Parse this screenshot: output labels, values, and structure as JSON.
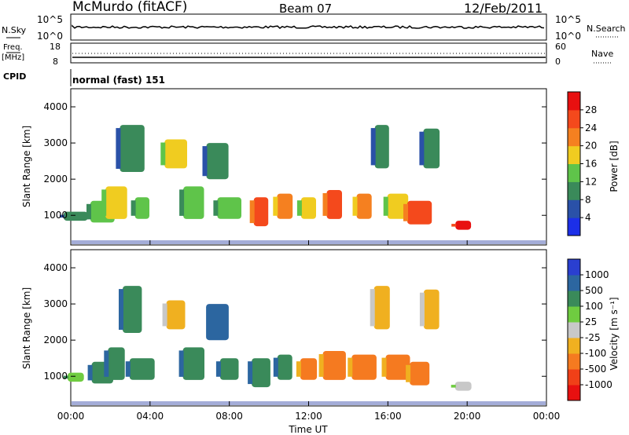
{
  "header": {
    "station": "McMurdo (fitACF)",
    "beam": "Beam 07",
    "date": "12/Feb/2011"
  },
  "top_panels": {
    "nsky_label": "N.Sky",
    "nsky_ticks": [
      "10^5",
      "10^0"
    ],
    "nsearch_label": "N.Search",
    "freq_label_1": "Freq.",
    "freq_label_2": "[MHz]",
    "freq_ticks": [
      "18",
      "8"
    ],
    "nave_ticks": [
      "60",
      "0"
    ],
    "nave_label": "Nave",
    "cpid_label": "CPID",
    "cpid_value": "normal (fast) 151"
  },
  "chart_data": [
    {
      "type": "heatmap",
      "name": "power",
      "ylabel": "Slant Range [km]",
      "yticks": [
        1000,
        2000,
        3000,
        4000
      ],
      "ylim": [
        180,
        4500
      ],
      "colorbar": {
        "label": "Power [dB]",
        "ticks": [
          "4",
          "8",
          "12",
          "16",
          "20",
          "24",
          "28"
        ],
        "colors": [
          "#1c2fe8",
          "#2a51a8",
          "#3a8a5a",
          "#5fc44a",
          "#f0cc20",
          "#f58020",
          "#f4491c",
          "#e81010"
        ]
      },
      "blobs": [
        {
          "t": 0.25,
          "r": [
            850,
            1100
          ],
          "level": 2
        },
        {
          "t": 1.6,
          "r": [
            800,
            1400
          ],
          "level": 3
        },
        {
          "t": 2.3,
          "r": [
            900,
            1800
          ],
          "level": 4
        },
        {
          "t": 3.1,
          "r": [
            2200,
            3500
          ],
          "level": 2
        },
        {
          "t": 3.6,
          "r": [
            900,
            1500
          ],
          "level": 3
        },
        {
          "t": 5.3,
          "r": [
            2300,
            3100
          ],
          "level": 4
        },
        {
          "t": 6.2,
          "r": [
            900,
            1800
          ],
          "level": 3
        },
        {
          "t": 7.4,
          "r": [
            2000,
            3000
          ],
          "level": 2
        },
        {
          "t": 8.0,
          "r": [
            900,
            1500
          ],
          "level": 3
        },
        {
          "t": 9.6,
          "r": [
            700,
            1500
          ],
          "level": 6
        },
        {
          "t": 10.8,
          "r": [
            900,
            1600
          ],
          "level": 5
        },
        {
          "t": 12.0,
          "r": [
            900,
            1500
          ],
          "level": 4
        },
        {
          "t": 13.3,
          "r": [
            900,
            1700
          ],
          "level": 6
        },
        {
          "t": 14.8,
          "r": [
            900,
            1600
          ],
          "level": 5
        },
        {
          "t": 15.7,
          "r": [
            2300,
            3500
          ],
          "level": 2
        },
        {
          "t": 16.5,
          "r": [
            900,
            1600
          ],
          "level": 4
        },
        {
          "t": 17.6,
          "r": [
            750,
            1400
          ],
          "level": 6
        },
        {
          "t": 18.2,
          "r": [
            2300,
            3400
          ],
          "level": 2
        },
        {
          "t": 19.8,
          "r": [
            600,
            850
          ],
          "level": 7
        }
      ]
    },
    {
      "type": "heatmap",
      "name": "velocity",
      "xlabel": "Time UT",
      "ylabel": "Slant Range [km]",
      "yticks": [
        1000,
        2000,
        3000,
        4000
      ],
      "ylim": [
        180,
        4500
      ],
      "xticks": [
        "00:00",
        "04:00",
        "08:00",
        "12:00",
        "16:00",
        "20:00",
        "00:00"
      ],
      "xlim_hours": [
        0,
        24
      ],
      "colorbar": {
        "label": "Velocity [m s⁻¹]",
        "ticks": [
          "1000",
          "500",
          "100",
          "25",
          "-25",
          "-100",
          "-500",
          "-1000"
        ],
        "colors": [
          "#2a3fd0",
          "#2c66a0",
          "#3a8a5a",
          "#6fcc40",
          "#c8c8c8",
          "#f0b020",
          "#f57a20",
          "#f04018",
          "#e81010"
        ]
      },
      "blobs": [
        {
          "t": 0.25,
          "r": [
            850,
            1100
          ],
          "level": 3
        },
        {
          "t": 1.6,
          "r": [
            800,
            1400
          ],
          "level": 2
        },
        {
          "t": 2.3,
          "r": [
            900,
            1800
          ],
          "level": 2
        },
        {
          "t": 3.1,
          "r": [
            2200,
            3500
          ],
          "level": 2
        },
        {
          "t": 3.6,
          "r": [
            900,
            1500
          ],
          "level": 2
        },
        {
          "t": 5.3,
          "r": [
            2300,
            3100
          ],
          "level": 5
        },
        {
          "t": 6.2,
          "r": [
            900,
            1800
          ],
          "level": 2
        },
        {
          "t": 7.4,
          "r": [
            2000,
            3000
          ],
          "level": 1
        },
        {
          "t": 8.0,
          "r": [
            900,
            1500
          ],
          "level": 2
        },
        {
          "t": 9.6,
          "r": [
            700,
            1500
          ],
          "level": 2
        },
        {
          "t": 10.8,
          "r": [
            900,
            1600
          ],
          "level": 2
        },
        {
          "t": 12.0,
          "r": [
            900,
            1500
          ],
          "level": 6
        },
        {
          "t": 13.3,
          "r": [
            900,
            1700
          ],
          "level": 6
        },
        {
          "t": 14.8,
          "r": [
            900,
            1600
          ],
          "level": 6
        },
        {
          "t": 15.7,
          "r": [
            2300,
            3500
          ],
          "level": 5
        },
        {
          "t": 16.5,
          "r": [
            900,
            1600
          ],
          "level": 6
        },
        {
          "t": 17.6,
          "r": [
            750,
            1400
          ],
          "level": 6
        },
        {
          "t": 18.2,
          "r": [
            2300,
            3400
          ],
          "level": 5
        },
        {
          "t": 19.8,
          "r": [
            600,
            850
          ],
          "level": 4
        }
      ]
    }
  ]
}
